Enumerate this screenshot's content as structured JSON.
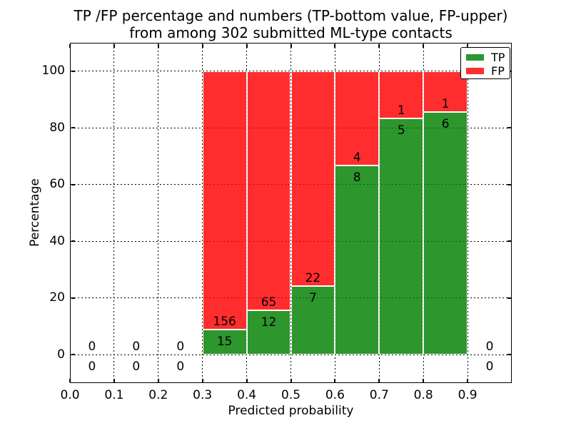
{
  "title": {
    "line1": "TP /FP percentage and numbers (TP-bottom value, FP-upper)",
    "line2": "from among 302 submitted ML-type contacts"
  },
  "axes": {
    "xlabel": "Predicted probability",
    "ylabel": "Percentage",
    "xlim": [
      0.0,
      1.0
    ],
    "ylim": [
      -10,
      110
    ],
    "grid_style": "dotted",
    "x_ticks": [
      {
        "value": 0.0,
        "label": "0.0"
      },
      {
        "value": 0.1,
        "label": "0.1"
      },
      {
        "value": 0.2,
        "label": "0.2"
      },
      {
        "value": 0.3,
        "label": "0.3"
      },
      {
        "value": 0.4,
        "label": "0.4"
      },
      {
        "value": 0.5,
        "label": "0.5"
      },
      {
        "value": 0.6,
        "label": "0.6"
      },
      {
        "value": 0.7,
        "label": "0.7"
      },
      {
        "value": 0.8,
        "label": "0.8"
      },
      {
        "value": 0.9,
        "label": "0.9"
      }
    ],
    "y_ticks": [
      {
        "value": 0,
        "label": "0"
      },
      {
        "value": 20,
        "label": "20"
      },
      {
        "value": 40,
        "label": "40"
      },
      {
        "value": 60,
        "label": "60"
      },
      {
        "value": 80,
        "label": "80"
      },
      {
        "value": 100,
        "label": "100"
      }
    ]
  },
  "legend": {
    "position": "upper right",
    "items": [
      {
        "label": "TP",
        "color": "#008000"
      },
      {
        "label": "FP",
        "color": "#ff0000"
      }
    ]
  },
  "colors": {
    "tp": "#008000",
    "fp": "#ff0000",
    "bar_edge": "#ffffff",
    "grid": "#000000",
    "text": "#000000",
    "bar_alpha": 0.82
  },
  "chart_data": {
    "type": "bar",
    "stacked": true,
    "unit": "percent",
    "total_contacts": 302,
    "title": "TP /FP percentage and numbers (TP-bottom value, FP-upper) from among 302 submitted ML-type contacts",
    "xlabel": "Predicted probability",
    "ylabel": "Percentage",
    "xlim": [
      0.0,
      1.0
    ],
    "ylim": [
      -10,
      110
    ],
    "bin_width": 0.1,
    "categories": [
      "0.0-0.1",
      "0.1-0.2",
      "0.2-0.3",
      "0.3-0.4",
      "0.4-0.5",
      "0.5-0.6",
      "0.6-0.7",
      "0.7-0.8",
      "0.8-0.9",
      "0.9-1.0"
    ],
    "series": [
      {
        "name": "TP",
        "values": [
          0,
          0,
          0,
          8.77,
          15.58,
          24.14,
          66.67,
          83.33,
          85.71,
          0
        ]
      },
      {
        "name": "FP",
        "values": [
          0,
          0,
          0,
          91.23,
          84.42,
          75.86,
          33.33,
          16.67,
          14.29,
          0
        ]
      }
    ],
    "bins": [
      {
        "range": [
          0.0,
          0.1
        ],
        "tp_count": 0,
        "fp_count": 0,
        "tp_pct": 0,
        "fp_pct": 0
      },
      {
        "range": [
          0.1,
          0.2
        ],
        "tp_count": 0,
        "fp_count": 0,
        "tp_pct": 0,
        "fp_pct": 0
      },
      {
        "range": [
          0.2,
          0.3
        ],
        "tp_count": 0,
        "fp_count": 0,
        "tp_pct": 0,
        "fp_pct": 0
      },
      {
        "range": [
          0.3,
          0.4
        ],
        "tp_count": 15,
        "fp_count": 156,
        "tp_pct": 8.77,
        "fp_pct": 91.23
      },
      {
        "range": [
          0.4,
          0.5
        ],
        "tp_count": 12,
        "fp_count": 65,
        "tp_pct": 15.58,
        "fp_pct": 84.42
      },
      {
        "range": [
          0.5,
          0.6
        ],
        "tp_count": 7,
        "fp_count": 22,
        "tp_pct": 24.14,
        "fp_pct": 75.86
      },
      {
        "range": [
          0.6,
          0.7
        ],
        "tp_count": 8,
        "fp_count": 4,
        "tp_pct": 66.67,
        "fp_pct": 33.33
      },
      {
        "range": [
          0.7,
          0.8
        ],
        "tp_count": 5,
        "fp_count": 1,
        "tp_pct": 83.33,
        "fp_pct": 16.67
      },
      {
        "range": [
          0.8,
          0.9
        ],
        "tp_count": 6,
        "fp_count": 1,
        "tp_pct": 85.71,
        "fp_pct": 14.29
      },
      {
        "range": [
          0.9,
          1.0
        ],
        "tp_count": 0,
        "fp_count": 0,
        "tp_pct": 0,
        "fp_pct": 0
      }
    ]
  }
}
